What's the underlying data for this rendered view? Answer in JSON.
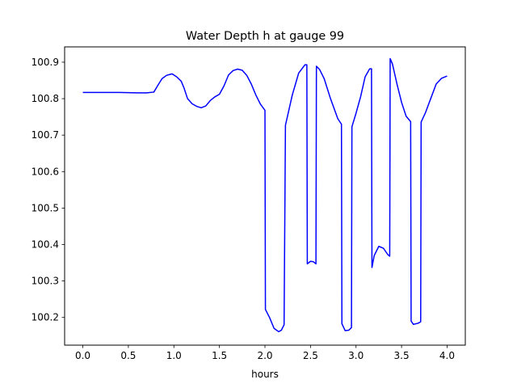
{
  "chart_data": {
    "type": "line",
    "title": "Water Depth h at gauge 99",
    "xlabel": "hours",
    "ylabel": "",
    "xlim": [
      -0.2,
      4.2
    ],
    "ylim": [
      100.124,
      100.942
    ],
    "xticks": [
      0.0,
      0.5,
      1.0,
      1.5,
      2.0,
      2.5,
      3.0,
      3.5,
      4.0
    ],
    "xtick_labels": [
      "0.0",
      "0.5",
      "1.0",
      "1.5",
      "2.0",
      "2.5",
      "3.0",
      "3.5",
      "4.0"
    ],
    "yticks": [
      100.2,
      100.3,
      100.4,
      100.5,
      100.6,
      100.7,
      100.8,
      100.9
    ],
    "ytick_labels": [
      "100.2",
      "100.3",
      "100.4",
      "100.5",
      "100.6",
      "100.7",
      "100.8",
      "100.9"
    ],
    "grid": false,
    "legend": "none",
    "series": [
      {
        "color": "#0000ff",
        "x": [
          0.0,
          0.2,
          0.4,
          0.6,
          0.7,
          0.78,
          0.82,
          0.87,
          0.92,
          0.98,
          1.03,
          1.08,
          1.11,
          1.15,
          1.2,
          1.25,
          1.3,
          1.35,
          1.4,
          1.45,
          1.5,
          1.55,
          1.6,
          1.65,
          1.7,
          1.75,
          1.8,
          1.85,
          1.9,
          1.95,
          2.0,
          2.005,
          2.05,
          2.1,
          2.15,
          2.18,
          2.21,
          2.225,
          2.3,
          2.37,
          2.44,
          2.46,
          2.465,
          2.5,
          2.53,
          2.56,
          2.565,
          2.6,
          2.65,
          2.72,
          2.8,
          2.84,
          2.845,
          2.88,
          2.92,
          2.95,
          2.955,
          3.0,
          3.05,
          3.1,
          3.15,
          3.17,
          3.175,
          3.2,
          3.25,
          3.3,
          3.35,
          3.37,
          3.375,
          3.4,
          3.45,
          3.5,
          3.55,
          3.6,
          3.605,
          3.63,
          3.68,
          3.71,
          3.715,
          3.76,
          3.82,
          3.88,
          3.94,
          4.0
        ],
        "y": [
          100.817,
          100.817,
          100.817,
          100.816,
          100.816,
          100.818,
          100.835,
          100.855,
          100.864,
          100.868,
          100.86,
          100.848,
          100.83,
          100.8,
          100.786,
          100.779,
          100.775,
          100.78,
          100.795,
          100.805,
          100.812,
          100.835,
          100.865,
          100.877,
          100.881,
          100.878,
          100.864,
          100.84,
          100.81,
          100.785,
          100.768,
          100.222,
          100.2,
          100.17,
          100.161,
          100.165,
          100.18,
          100.727,
          100.81,
          100.87,
          100.893,
          100.893,
          100.347,
          100.354,
          100.353,
          100.347,
          100.889,
          100.88,
          100.855,
          100.8,
          100.745,
          100.73,
          100.183,
          100.164,
          100.165,
          100.172,
          100.723,
          100.76,
          100.805,
          100.86,
          100.882,
          100.882,
          100.337,
          100.37,
          100.395,
          100.39,
          100.372,
          100.368,
          100.91,
          100.895,
          100.84,
          100.79,
          100.752,
          100.737,
          100.19,
          100.181,
          100.184,
          100.188,
          100.736,
          100.76,
          100.8,
          100.84,
          100.856,
          100.862
        ]
      }
    ]
  }
}
